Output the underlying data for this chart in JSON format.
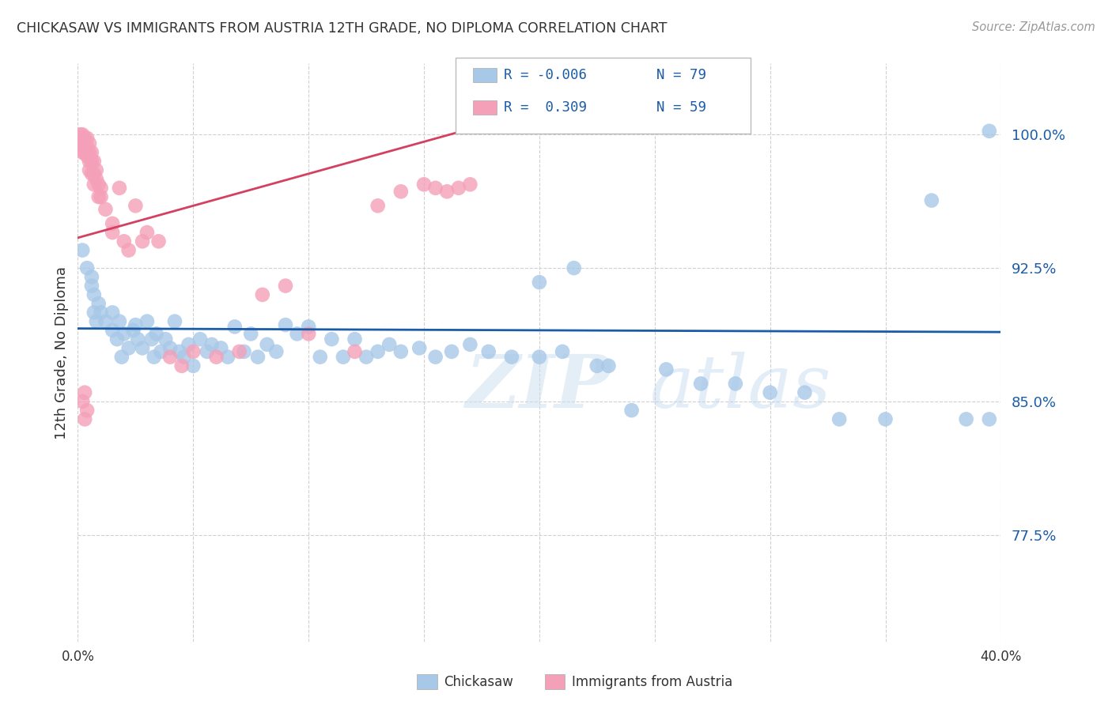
{
  "title": "CHICKASAW VS IMMIGRANTS FROM AUSTRIA 12TH GRADE, NO DIPLOMA CORRELATION CHART",
  "source": "Source: ZipAtlas.com",
  "ylabel": "12th Grade, No Diploma",
  "ytick_labels": [
    "100.0%",
    "92.5%",
    "85.0%",
    "77.5%"
  ],
  "ytick_values": [
    1.0,
    0.925,
    0.85,
    0.775
  ],
  "xlim": [
    0.0,
    0.4
  ],
  "ylim": [
    0.715,
    1.04
  ],
  "legend_blue_R": "R = -0.006",
  "legend_blue_N": "N = 79",
  "legend_pink_R": "R =  0.309",
  "legend_pink_N": "N = 59",
  "legend_label_blue": "Chickasaw",
  "legend_label_pink": "Immigrants from Austria",
  "blue_color": "#a8c8e8",
  "pink_color": "#f4a0b8",
  "blue_line_color": "#1a5ca8",
  "pink_line_color": "#d44060",
  "watermark_zip": "ZIP",
  "watermark_atlas": "atlas",
  "blue_trend_x": [
    0.0,
    0.4
  ],
  "blue_trend_y": [
    0.891,
    0.889
  ],
  "pink_trend_x": [
    0.0,
    0.175
  ],
  "pink_trend_y": [
    0.942,
    1.005
  ],
  "blue_scatter_x": [
    0.002,
    0.004,
    0.006,
    0.006,
    0.007,
    0.007,
    0.008,
    0.009,
    0.01,
    0.012,
    0.015,
    0.015,
    0.017,
    0.018,
    0.019,
    0.02,
    0.022,
    0.024,
    0.025,
    0.026,
    0.028,
    0.03,
    0.032,
    0.033,
    0.034,
    0.036,
    0.038,
    0.04,
    0.042,
    0.044,
    0.046,
    0.048,
    0.05,
    0.053,
    0.056,
    0.058,
    0.062,
    0.065,
    0.068,
    0.072,
    0.075,
    0.078,
    0.082,
    0.086,
    0.09,
    0.095,
    0.1,
    0.105,
    0.11,
    0.115,
    0.12,
    0.125,
    0.13,
    0.135,
    0.14,
    0.148,
    0.155,
    0.162,
    0.17,
    0.178,
    0.188,
    0.2,
    0.21,
    0.225,
    0.24,
    0.255,
    0.27,
    0.285,
    0.3,
    0.315,
    0.33,
    0.35,
    0.37,
    0.385,
    0.395,
    0.2,
    0.215,
    0.23,
    0.395
  ],
  "blue_scatter_y": [
    0.935,
    0.925,
    0.915,
    0.92,
    0.9,
    0.91,
    0.895,
    0.905,
    0.9,
    0.895,
    0.89,
    0.9,
    0.885,
    0.895,
    0.875,
    0.888,
    0.88,
    0.89,
    0.893,
    0.885,
    0.88,
    0.895,
    0.885,
    0.875,
    0.888,
    0.878,
    0.885,
    0.88,
    0.895,
    0.878,
    0.875,
    0.882,
    0.87,
    0.885,
    0.878,
    0.882,
    0.88,
    0.875,
    0.892,
    0.878,
    0.888,
    0.875,
    0.882,
    0.878,
    0.893,
    0.888,
    0.892,
    0.875,
    0.885,
    0.875,
    0.885,
    0.875,
    0.878,
    0.882,
    0.878,
    0.88,
    0.875,
    0.878,
    0.882,
    0.878,
    0.875,
    0.875,
    0.878,
    0.87,
    0.845,
    0.868,
    0.86,
    0.86,
    0.855,
    0.855,
    0.84,
    0.84,
    0.963,
    0.84,
    1.002,
    0.917,
    0.925,
    0.87,
    0.84
  ],
  "pink_scatter_x": [
    0.001,
    0.001,
    0.001,
    0.002,
    0.002,
    0.002,
    0.002,
    0.003,
    0.003,
    0.003,
    0.004,
    0.004,
    0.004,
    0.005,
    0.005,
    0.005,
    0.005,
    0.006,
    0.006,
    0.006,
    0.007,
    0.007,
    0.007,
    0.008,
    0.008,
    0.009,
    0.009,
    0.01,
    0.01,
    0.012,
    0.015,
    0.015,
    0.018,
    0.02,
    0.022,
    0.025,
    0.028,
    0.03,
    0.035,
    0.04,
    0.045,
    0.05,
    0.06,
    0.07,
    0.08,
    0.09,
    0.1,
    0.12,
    0.13,
    0.14,
    0.15,
    0.155,
    0.16,
    0.165,
    0.17,
    0.003,
    0.004,
    0.002,
    0.003
  ],
  "pink_scatter_y": [
    1.0,
    0.998,
    0.995,
    1.0,
    0.998,
    0.995,
    0.99,
    0.998,
    0.995,
    0.99,
    0.998,
    0.993,
    0.988,
    0.995,
    0.99,
    0.985,
    0.98,
    0.99,
    0.985,
    0.978,
    0.985,
    0.978,
    0.972,
    0.98,
    0.975,
    0.972,
    0.965,
    0.97,
    0.965,
    0.958,
    0.95,
    0.945,
    0.97,
    0.94,
    0.935,
    0.96,
    0.94,
    0.945,
    0.94,
    0.875,
    0.87,
    0.878,
    0.875,
    0.878,
    0.91,
    0.915,
    0.888,
    0.878,
    0.96,
    0.968,
    0.972,
    0.97,
    0.968,
    0.97,
    0.972,
    0.84,
    0.845,
    0.85,
    0.855
  ]
}
